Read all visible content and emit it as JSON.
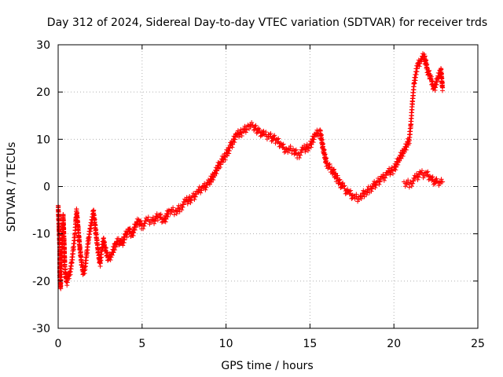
{
  "chart_data": {
    "type": "scatter",
    "title": "Day 312 of 2024, Sidereal Day-to-day VTEC variation (SDTVAR) for receiver trds",
    "xlabel": "GPS time / hours",
    "ylabel": "SDTVAR / TECUs",
    "xlim": [
      0,
      25
    ],
    "ylim": [
      -30,
      30
    ],
    "xticks": [
      0,
      5,
      10,
      15,
      20,
      25
    ],
    "yticks": [
      -30,
      -20,
      -10,
      0,
      10,
      20,
      30
    ],
    "xtick_labels": [
      "0",
      "5",
      "10",
      "15",
      "20",
      "25"
    ],
    "ytick_labels": [
      "-30",
      "-20",
      "-10",
      "0",
      "10",
      "20",
      "30"
    ],
    "grid": true,
    "marker": "+",
    "color": "#ff0000",
    "series": [
      {
        "name": "trds",
        "points": [
          [
            0.0,
            -4
          ],
          [
            0.05,
            -8
          ],
          [
            0.1,
            -13
          ],
          [
            0.1,
            -19
          ],
          [
            0.15,
            -21
          ],
          [
            0.2,
            -15
          ],
          [
            0.3,
            -6
          ],
          [
            0.35,
            -11
          ],
          [
            0.4,
            -17
          ],
          [
            0.5,
            -20
          ],
          [
            0.6,
            -19
          ],
          [
            0.7,
            -18
          ],
          [
            0.8,
            -16
          ],
          [
            0.9,
            -13
          ],
          [
            1.0,
            -10
          ],
          [
            1.05,
            -7
          ],
          [
            1.1,
            -5
          ],
          [
            1.2,
            -9
          ],
          [
            1.3,
            -13
          ],
          [
            1.4,
            -16
          ],
          [
            1.5,
            -18
          ],
          [
            1.6,
            -17
          ],
          [
            1.7,
            -14
          ],
          [
            1.8,
            -11
          ],
          [
            1.9,
            -9
          ],
          [
            2.0,
            -7
          ],
          [
            2.1,
            -5
          ],
          [
            2.2,
            -8
          ],
          [
            2.3,
            -11
          ],
          [
            2.4,
            -14
          ],
          [
            2.5,
            -16
          ],
          [
            2.6,
            -13
          ],
          [
            2.7,
            -11
          ],
          [
            2.8,
            -13
          ],
          [
            3.0,
            -15
          ],
          [
            3.2,
            -14
          ],
          [
            3.4,
            -12
          ],
          [
            3.6,
            -11
          ],
          [
            3.8,
            -12
          ],
          [
            4.0,
            -10
          ],
          [
            4.2,
            -9
          ],
          [
            4.4,
            -10
          ],
          [
            4.6,
            -8
          ],
          [
            4.8,
            -7
          ],
          [
            5.0,
            -8
          ],
          [
            5.3,
            -7
          ],
          [
            5.6,
            -7
          ],
          [
            6.0,
            -6
          ],
          [
            6.3,
            -7
          ],
          [
            6.6,
            -5
          ],
          [
            7.0,
            -5
          ],
          [
            7.3,
            -4
          ],
          [
            7.6,
            -3
          ],
          [
            8.0,
            -2
          ],
          [
            8.3,
            -1
          ],
          [
            8.6,
            0
          ],
          [
            9.0,
            1
          ],
          [
            9.3,
            3
          ],
          [
            9.6,
            5
          ],
          [
            10.0,
            7
          ],
          [
            10.3,
            9
          ],
          [
            10.6,
            11
          ],
          [
            11.0,
            12
          ],
          [
            11.3,
            13
          ],
          [
            11.6,
            13
          ],
          [
            12.0,
            12
          ],
          [
            12.3,
            11
          ],
          [
            12.6,
            11
          ],
          [
            13.0,
            10
          ],
          [
            13.3,
            9
          ],
          [
            13.6,
            8
          ],
          [
            14.0,
            8
          ],
          [
            14.3,
            7
          ],
          [
            14.6,
            8
          ],
          [
            15.0,
            9
          ],
          [
            15.3,
            11
          ],
          [
            15.6,
            12
          ],
          [
            15.8,
            8
          ],
          [
            16.0,
            5
          ],
          [
            16.3,
            4
          ],
          [
            16.6,
            2
          ],
          [
            17.0,
            0
          ],
          [
            17.3,
            -1
          ],
          [
            17.6,
            -2
          ],
          [
            18.0,
            -2
          ],
          [
            18.3,
            -1
          ],
          [
            18.6,
            0
          ],
          [
            19.0,
            1
          ],
          [
            19.3,
            2
          ],
          [
            19.6,
            3
          ],
          [
            20.0,
            4
          ],
          [
            20.3,
            6
          ],
          [
            20.6,
            8
          ],
          [
            20.9,
            10
          ],
          [
            21.0,
            13
          ],
          [
            21.1,
            18
          ],
          [
            21.2,
            22
          ],
          [
            21.4,
            26
          ],
          [
            21.6,
            27
          ],
          [
            21.8,
            28
          ],
          [
            22.0,
            25
          ],
          [
            22.2,
            23
          ],
          [
            22.4,
            21
          ],
          [
            22.6,
            23
          ],
          [
            22.8,
            25
          ],
          [
            22.9,
            21
          ],
          [
            20.6,
            1
          ],
          [
            21.0,
            1
          ],
          [
            21.3,
            2
          ],
          [
            21.6,
            3
          ],
          [
            21.9,
            3
          ],
          [
            22.2,
            2
          ],
          [
            22.6,
            1
          ],
          [
            22.9,
            1
          ]
        ]
      }
    ]
  }
}
